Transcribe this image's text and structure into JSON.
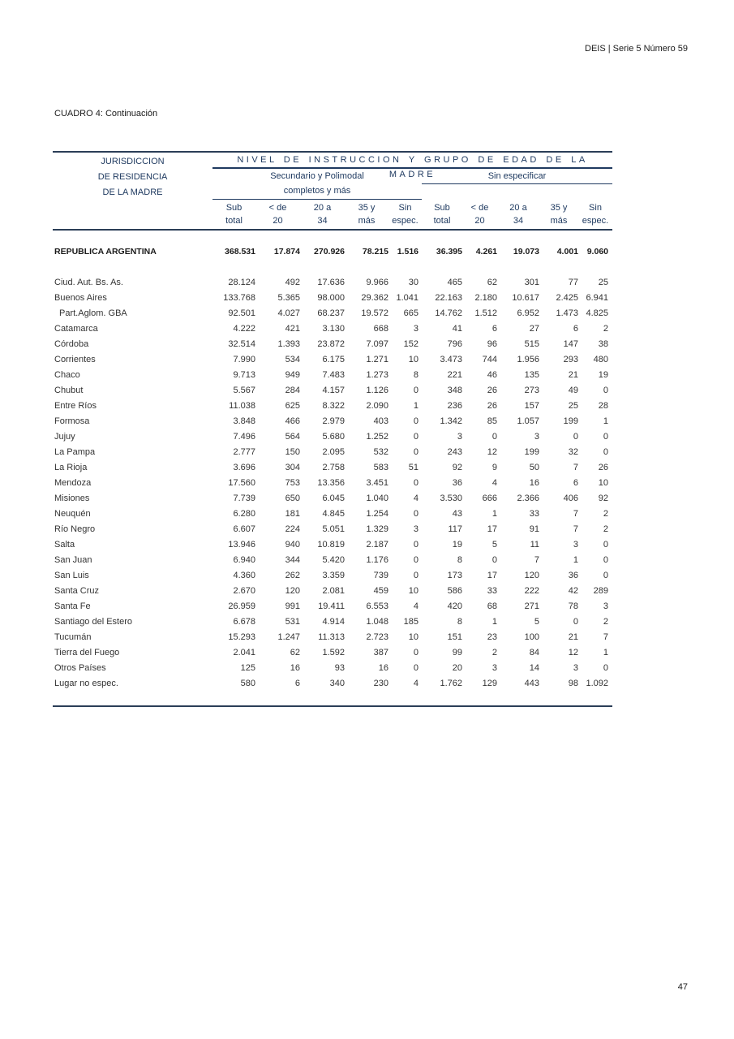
{
  "page": {
    "header_right": "DEIS | Serie 5 Número 59",
    "title": "CUADRO 4: Continuación",
    "page_number": "47"
  },
  "colors": {
    "header_blue": "#1F3A60",
    "rule_navy": "#2B3E57",
    "body_text": "#333333"
  },
  "table": {
    "stub_header": [
      "JURISDICCION",
      "DE RESIDENCIA",
      "DE LA MADRE"
    ],
    "spanner": "NIVEL DE INSTRUCCION Y GRUPO DE EDAD DE LA MADRE",
    "group_secundario_line1": "Secundario y Polimodal",
    "group_secundario_line2": "completos y más",
    "group_sin_especificar": "Sin especificar",
    "col_headers": [
      [
        "Sub",
        "total"
      ],
      [
        "< de",
        "20"
      ],
      [
        "20 a",
        "34"
      ],
      [
        "35 y",
        "más"
      ],
      [
        "Sin",
        "espec."
      ],
      [
        "Sub",
        "total"
      ],
      [
        "< de",
        "20"
      ],
      [
        "20 a",
        "34"
      ],
      [
        "35 y",
        "más"
      ],
      [
        "Sin",
        "espec."
      ]
    ],
    "total_row": {
      "label": "REPUBLICA ARGENTINA",
      "values": [
        "368.531",
        "17.874",
        "270.926",
        "78.215",
        "1.516",
        "36.395",
        "4.261",
        "19.073",
        "4.001",
        "9.060"
      ]
    },
    "rows": [
      {
        "label": "Ciud. Aut. Bs. As.",
        "indent": false,
        "values": [
          "28.124",
          "492",
          "17.636",
          "9.966",
          "30",
          "465",
          "62",
          "301",
          "77",
          "25"
        ]
      },
      {
        "label": "Buenos Aires",
        "indent": false,
        "values": [
          "133.768",
          "5.365",
          "98.000",
          "29.362",
          "1.041",
          "22.163",
          "2.180",
          "10.617",
          "2.425",
          "6.941"
        ]
      },
      {
        "label": "Part.Aglom. GBA",
        "indent": true,
        "values": [
          "92.501",
          "4.027",
          "68.237",
          "19.572",
          "665",
          "14.762",
          "1.512",
          "6.952",
          "1.473",
          "4.825"
        ]
      },
      {
        "label": "Catamarca",
        "indent": false,
        "values": [
          "4.222",
          "421",
          "3.130",
          "668",
          "3",
          "41",
          "6",
          "27",
          "6",
          "2"
        ]
      },
      {
        "label": "Córdoba",
        "indent": false,
        "values": [
          "32.514",
          "1.393",
          "23.872",
          "7.097",
          "152",
          "796",
          "96",
          "515",
          "147",
          "38"
        ]
      },
      {
        "label": "Corrientes",
        "indent": false,
        "values": [
          "7.990",
          "534",
          "6.175",
          "1.271",
          "10",
          "3.473",
          "744",
          "1.956",
          "293",
          "480"
        ]
      },
      {
        "label": "Chaco",
        "indent": false,
        "values": [
          "9.713",
          "949",
          "7.483",
          "1.273",
          "8",
          "221",
          "46",
          "135",
          "21",
          "19"
        ]
      },
      {
        "label": "Chubut",
        "indent": false,
        "values": [
          "5.567",
          "284",
          "4.157",
          "1.126",
          "0",
          "348",
          "26",
          "273",
          "49",
          "0"
        ]
      },
      {
        "label": "Entre Ríos",
        "indent": false,
        "values": [
          "11.038",
          "625",
          "8.322",
          "2.090",
          "1",
          "236",
          "26",
          "157",
          "25",
          "28"
        ]
      },
      {
        "label": "Formosa",
        "indent": false,
        "values": [
          "3.848",
          "466",
          "2.979",
          "403",
          "0",
          "1.342",
          "85",
          "1.057",
          "199",
          "1"
        ]
      },
      {
        "label": "Jujuy",
        "indent": false,
        "values": [
          "7.496",
          "564",
          "5.680",
          "1.252",
          "0",
          "3",
          "0",
          "3",
          "0",
          "0"
        ]
      },
      {
        "label": "La Pampa",
        "indent": false,
        "values": [
          "2.777",
          "150",
          "2.095",
          "532",
          "0",
          "243",
          "12",
          "199",
          "32",
          "0"
        ]
      },
      {
        "label": "La Rioja",
        "indent": false,
        "values": [
          "3.696",
          "304",
          "2.758",
          "583",
          "51",
          "92",
          "9",
          "50",
          "7",
          "26"
        ]
      },
      {
        "label": "Mendoza",
        "indent": false,
        "values": [
          "17.560",
          "753",
          "13.356",
          "3.451",
          "0",
          "36",
          "4",
          "16",
          "6",
          "10"
        ]
      },
      {
        "label": "Misiones",
        "indent": false,
        "values": [
          "7.739",
          "650",
          "6.045",
          "1.040",
          "4",
          "3.530",
          "666",
          "2.366",
          "406",
          "92"
        ]
      },
      {
        "label": "Neuquén",
        "indent": false,
        "values": [
          "6.280",
          "181",
          "4.845",
          "1.254",
          "0",
          "43",
          "1",
          "33",
          "7",
          "2"
        ]
      },
      {
        "label": "Río Negro",
        "indent": false,
        "values": [
          "6.607",
          "224",
          "5.051",
          "1.329",
          "3",
          "117",
          "17",
          "91",
          "7",
          "2"
        ]
      },
      {
        "label": "Salta",
        "indent": false,
        "values": [
          "13.946",
          "940",
          "10.819",
          "2.187",
          "0",
          "19",
          "5",
          "11",
          "3",
          "0"
        ]
      },
      {
        "label": "San Juan",
        "indent": false,
        "values": [
          "6.940",
          "344",
          "5.420",
          "1.176",
          "0",
          "8",
          "0",
          "7",
          "1",
          "0"
        ]
      },
      {
        "label": "San Luis",
        "indent": false,
        "values": [
          "4.360",
          "262",
          "3.359",
          "739",
          "0",
          "173",
          "17",
          "120",
          "36",
          "0"
        ]
      },
      {
        "label": "Santa Cruz",
        "indent": false,
        "values": [
          "2.670",
          "120",
          "2.081",
          "459",
          "10",
          "586",
          "33",
          "222",
          "42",
          "289"
        ]
      },
      {
        "label": "Santa Fe",
        "indent": false,
        "values": [
          "26.959",
          "991",
          "19.411",
          "6.553",
          "4",
          "420",
          "68",
          "271",
          "78",
          "3"
        ]
      },
      {
        "label": "Santiago del Estero",
        "indent": false,
        "values": [
          "6.678",
          "531",
          "4.914",
          "1.048",
          "185",
          "8",
          "1",
          "5",
          "0",
          "2"
        ]
      },
      {
        "label": "Tucumán",
        "indent": false,
        "values": [
          "15.293",
          "1.247",
          "11.313",
          "2.723",
          "10",
          "151",
          "23",
          "100",
          "21",
          "7"
        ]
      },
      {
        "label": "Tierra del Fuego",
        "indent": false,
        "values": [
          "2.041",
          "62",
          "1.592",
          "387",
          "0",
          "99",
          "2",
          "84",
          "12",
          "1"
        ]
      },
      {
        "label": "Otros Países",
        "indent": false,
        "values": [
          "125",
          "16",
          "93",
          "16",
          "0",
          "20",
          "3",
          "14",
          "3",
          "0"
        ]
      },
      {
        "label": "Lugar no espec.",
        "indent": false,
        "values": [
          "580",
          "6",
          "340",
          "230",
          "4",
          "1.762",
          "129",
          "443",
          "98",
          "1.092"
        ]
      }
    ]
  }
}
